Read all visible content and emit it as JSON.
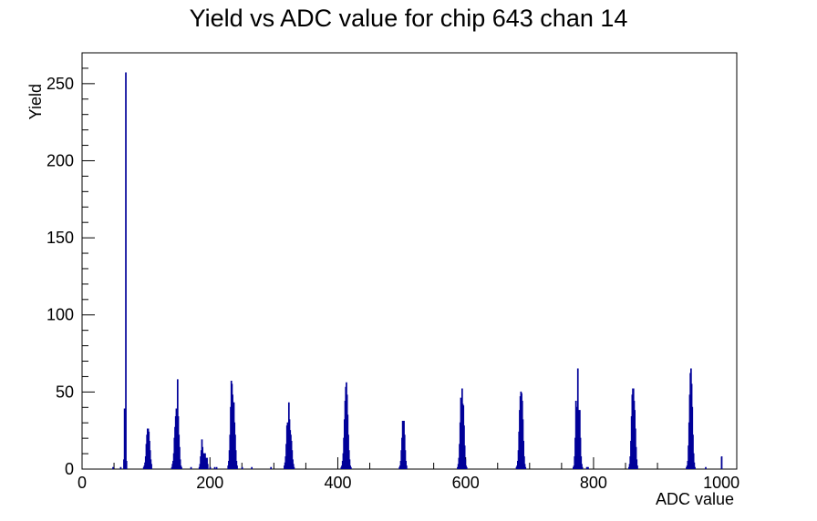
{
  "chart_data": {
    "type": "bar",
    "title": "Yield vs ADC value for chip 643 chan 14",
    "xlabel": "ADC value",
    "ylabel": "Yield",
    "xlim": [
      0,
      1024
    ],
    "ylim": [
      0,
      270
    ],
    "x_ticks": [
      0,
      200,
      400,
      600,
      800,
      1000
    ],
    "y_ticks": [
      0,
      50,
      100,
      150,
      200,
      250
    ],
    "grid": false,
    "legend": "none",
    "bin_width": 1,
    "line_color": "#000099",
    "series": [
      {
        "values": [
          [
            48,
            1
          ],
          [
            60,
            1
          ],
          [
            65,
            6
          ],
          [
            66,
            39
          ],
          [
            67,
            25
          ],
          [
            68,
            257
          ],
          [
            69,
            5
          ],
          [
            96,
            1
          ],
          [
            97,
            2
          ],
          [
            98,
            4
          ],
          [
            99,
            8
          ],
          [
            100,
            16
          ],
          [
            101,
            22
          ],
          [
            102,
            26
          ],
          [
            103,
            26
          ],
          [
            104,
            24
          ],
          [
            105,
            18
          ],
          [
            106,
            12
          ],
          [
            107,
            6
          ],
          [
            108,
            3
          ],
          [
            140,
            1
          ],
          [
            141,
            3
          ],
          [
            142,
            5
          ],
          [
            143,
            10
          ],
          [
            144,
            20
          ],
          [
            145,
            27
          ],
          [
            146,
            34
          ],
          [
            147,
            39
          ],
          [
            148,
            39
          ],
          [
            149,
            58
          ],
          [
            150,
            34
          ],
          [
            151,
            22
          ],
          [
            152,
            14
          ],
          [
            153,
            6
          ],
          [
            154,
            2
          ],
          [
            155,
            1
          ],
          [
            170,
            1
          ],
          [
            183,
            1
          ],
          [
            184,
            3
          ],
          [
            185,
            8
          ],
          [
            186,
            12
          ],
          [
            187,
            19
          ],
          [
            188,
            14
          ],
          [
            189,
            10
          ],
          [
            190,
            10
          ],
          [
            191,
            7
          ],
          [
            192,
            10
          ],
          [
            193,
            7
          ],
          [
            194,
            5
          ],
          [
            195,
            7
          ],
          [
            196,
            3
          ],
          [
            200,
            1
          ],
          [
            207,
            1
          ],
          [
            210,
            1
          ],
          [
            228,
            2
          ],
          [
            229,
            5
          ],
          [
            230,
            12
          ],
          [
            231,
            22
          ],
          [
            232,
            40
          ],
          [
            233,
            57
          ],
          [
            234,
            55
          ],
          [
            235,
            48
          ],
          [
            236,
            43
          ],
          [
            237,
            43
          ],
          [
            238,
            30
          ],
          [
            239,
            22
          ],
          [
            240,
            12
          ],
          [
            241,
            5
          ],
          [
            242,
            2
          ],
          [
            250,
            1
          ],
          [
            265,
            1
          ],
          [
            295,
            1
          ],
          [
            316,
            2
          ],
          [
            317,
            4
          ],
          [
            318,
            8
          ],
          [
            319,
            16
          ],
          [
            320,
            28
          ],
          [
            321,
            30
          ],
          [
            322,
            25
          ],
          [
            323,
            43
          ],
          [
            324,
            32
          ],
          [
            325,
            25
          ],
          [
            326,
            22
          ],
          [
            327,
            18
          ],
          [
            328,
            12
          ],
          [
            329,
            6
          ],
          [
            330,
            3
          ],
          [
            331,
            1
          ],
          [
            405,
            1
          ],
          [
            406,
            2
          ],
          [
            407,
            5
          ],
          [
            408,
            10
          ],
          [
            409,
            20
          ],
          [
            410,
            32
          ],
          [
            411,
            44
          ],
          [
            412,
            53
          ],
          [
            413,
            56
          ],
          [
            414,
            48
          ],
          [
            415,
            35
          ],
          [
            416,
            22
          ],
          [
            417,
            12
          ],
          [
            418,
            6
          ],
          [
            419,
            2
          ],
          [
            420,
            1
          ],
          [
            496,
            1
          ],
          [
            497,
            2
          ],
          [
            498,
            5
          ],
          [
            499,
            12
          ],
          [
            500,
            20
          ],
          [
            501,
            31
          ],
          [
            502,
            31
          ],
          [
            503,
            31
          ],
          [
            504,
            22
          ],
          [
            505,
            12
          ],
          [
            506,
            5
          ],
          [
            507,
            2
          ],
          [
            587,
            1
          ],
          [
            588,
            3
          ],
          [
            589,
            7
          ],
          [
            590,
            16
          ],
          [
            591,
            30
          ],
          [
            592,
            46
          ],
          [
            593,
            44
          ],
          [
            594,
            52
          ],
          [
            595,
            42
          ],
          [
            596,
            41
          ],
          [
            597,
            28
          ],
          [
            598,
            15
          ],
          [
            599,
            6
          ],
          [
            600,
            2
          ],
          [
            601,
            1
          ],
          [
            679,
            1
          ],
          [
            680,
            2
          ],
          [
            681,
            5
          ],
          [
            682,
            12
          ],
          [
            683,
            24
          ],
          [
            684,
            38
          ],
          [
            685,
            47
          ],
          [
            686,
            50
          ],
          [
            687,
            49
          ],
          [
            688,
            44
          ],
          [
            689,
            32
          ],
          [
            690,
            18
          ],
          [
            691,
            8
          ],
          [
            692,
            3
          ],
          [
            693,
            1
          ],
          [
            768,
            1
          ],
          [
            769,
            2
          ],
          [
            770,
            8
          ],
          [
            771,
            20
          ],
          [
            772,
            44
          ],
          [
            773,
            40
          ],
          [
            774,
            37
          ],
          [
            775,
            65
          ],
          [
            776,
            38
          ],
          [
            777,
            35
          ],
          [
            778,
            38
          ],
          [
            779,
            20
          ],
          [
            780,
            8
          ],
          [
            781,
            3
          ],
          [
            782,
            1
          ],
          [
            789,
            1
          ],
          [
            791,
            1
          ],
          [
            855,
            1
          ],
          [
            856,
            3
          ],
          [
            857,
            8
          ],
          [
            858,
            18
          ],
          [
            859,
            34
          ],
          [
            860,
            48
          ],
          [
            861,
            52
          ],
          [
            862,
            52
          ],
          [
            863,
            44
          ],
          [
            864,
            38
          ],
          [
            865,
            26
          ],
          [
            866,
            14
          ],
          [
            867,
            6
          ],
          [
            868,
            2
          ],
          [
            945,
            1
          ],
          [
            946,
            2
          ],
          [
            947,
            5
          ],
          [
            948,
            15
          ],
          [
            949,
            30
          ],
          [
            950,
            48
          ],
          [
            951,
            62
          ],
          [
            952,
            65
          ],
          [
            953,
            55
          ],
          [
            954,
            40
          ],
          [
            955,
            22
          ],
          [
            956,
            10
          ],
          [
            957,
            4
          ],
          [
            958,
            1
          ],
          [
            975,
            1
          ],
          [
            1000,
            8
          ]
        ]
      }
    ]
  }
}
